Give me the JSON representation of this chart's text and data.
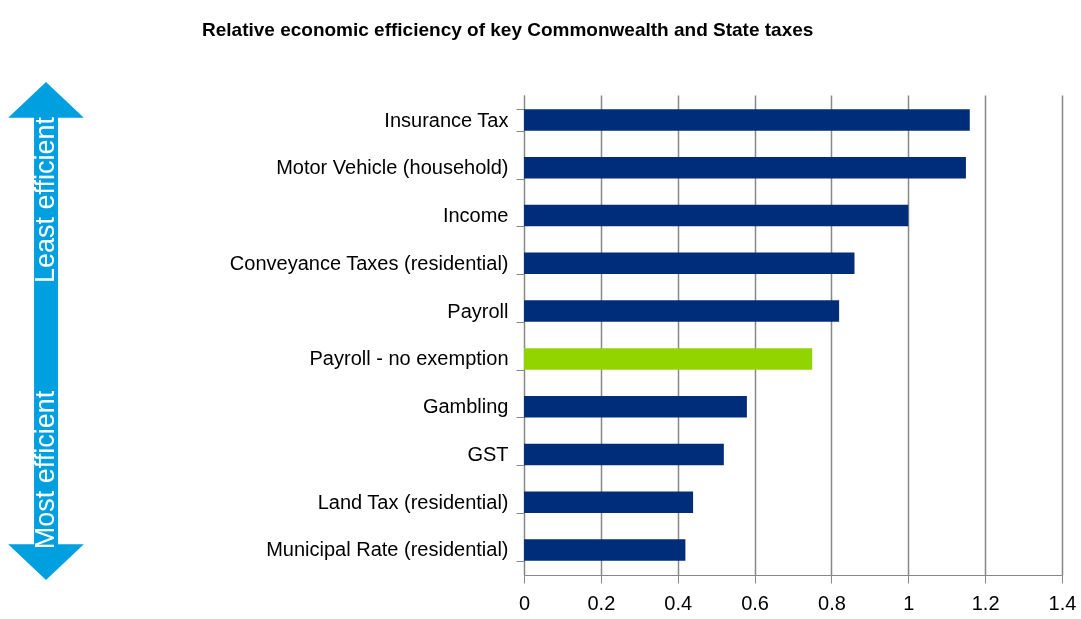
{
  "chart_data": {
    "type": "bar",
    "orientation": "horizontal",
    "title": "Relative economic efficiency of key Commonwealth and State taxes",
    "categories": [
      "Insurance Tax",
      "Motor Vehicle (household)",
      "Income",
      "Conveyance Taxes (residential)",
      "Payroll",
      "Payroll - no exemption",
      "Gambling",
      "GST",
      "Land Tax (residential)",
      "Municipal Rate (residential)"
    ],
    "values": [
      1.16,
      1.15,
      1.0,
      0.86,
      0.82,
      0.75,
      0.58,
      0.52,
      0.44,
      0.42
    ],
    "colors": [
      "#002d7a",
      "#002d7a",
      "#002d7a",
      "#002d7a",
      "#002d7a",
      "#92d400",
      "#002d7a",
      "#002d7a",
      "#002d7a",
      "#002d7a"
    ],
    "xlim": [
      0,
      1.4
    ],
    "xticks": [
      0,
      0.2,
      0.4,
      0.6,
      0.8,
      1,
      1.2,
      1.4
    ],
    "grid": "x",
    "annotations": [
      "Least efficient",
      "Most efficient"
    ]
  }
}
